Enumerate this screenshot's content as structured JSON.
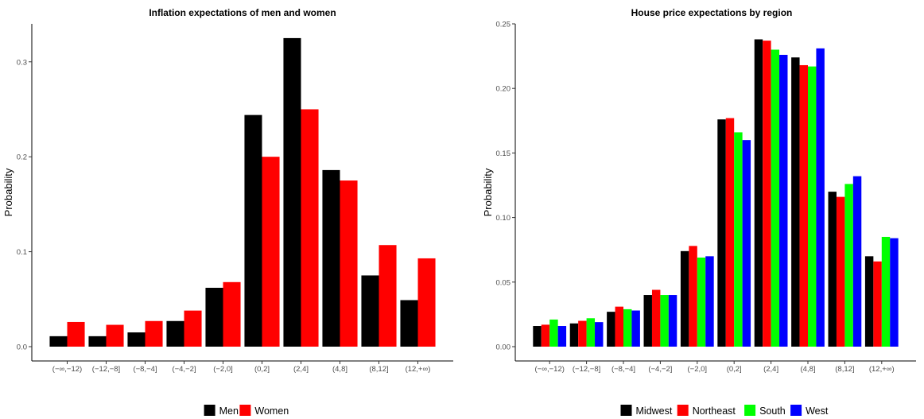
{
  "chart_data": [
    {
      "type": "bar",
      "title": "Inflation expectations of men and women",
      "xlabel": "",
      "ylabel": "Probability",
      "ylim": [
        0,
        0.34
      ],
      "yticks": [
        0.0,
        0.1,
        0.2,
        0.3
      ],
      "ytick_labels": [
        "0.0",
        "0.1",
        "0.2",
        "0.3"
      ],
      "grid": false,
      "legend": "bottom",
      "categories": [
        "(−∞,−12)",
        "(−12,−8]",
        "(−8,−4]",
        "(−4,−2]",
        "(−2,0]",
        "(0,2]",
        "(2,4]",
        "(4,8]",
        "(8,12]",
        "(12,+∞)"
      ],
      "series": [
        {
          "name": "Men",
          "color": "#000000",
          "values": [
            0.011,
            0.011,
            0.015,
            0.027,
            0.062,
            0.244,
            0.325,
            0.186,
            0.075,
            0.049
          ]
        },
        {
          "name": "Women",
          "color": "#ff0000",
          "values": [
            0.026,
            0.023,
            0.027,
            0.038,
            0.068,
            0.2,
            0.25,
            0.175,
            0.107,
            0.093
          ]
        }
      ]
    },
    {
      "type": "bar",
      "title": "House price expectations by region",
      "xlabel": "",
      "ylabel": "Probability",
      "ylim": [
        0,
        0.25
      ],
      "yticks": [
        0.0,
        0.05,
        0.1,
        0.15,
        0.2,
        0.25
      ],
      "ytick_labels": [
        "0.00",
        "0.05",
        "0.10",
        "0.15",
        "0.20",
        "0.25"
      ],
      "grid": false,
      "legend": "bottom",
      "categories": [
        "(−∞,−12)",
        "(−12,−8]",
        "(−8,−4]",
        "(−4,−2]",
        "(−2,0]",
        "(0,2]",
        "(2,4]",
        "(4,8]",
        "(8,12]",
        "(12,+∞)"
      ],
      "series": [
        {
          "name": "Midwest",
          "color": "#000000",
          "values": [
            0.016,
            0.018,
            0.027,
            0.04,
            0.074,
            0.176,
            0.238,
            0.224,
            0.12,
            0.07
          ]
        },
        {
          "name": "Northeast",
          "color": "#ff0000",
          "values": [
            0.017,
            0.02,
            0.031,
            0.044,
            0.078,
            0.177,
            0.237,
            0.218,
            0.116,
            0.066
          ]
        },
        {
          "name": "South",
          "color": "#00ff00",
          "values": [
            0.021,
            0.022,
            0.029,
            0.04,
            0.069,
            0.166,
            0.23,
            0.217,
            0.126,
            0.085
          ]
        },
        {
          "name": "West",
          "color": "#0000ff",
          "values": [
            0.016,
            0.019,
            0.028,
            0.04,
            0.07,
            0.16,
            0.226,
            0.231,
            0.132,
            0.084
          ]
        }
      ]
    }
  ]
}
